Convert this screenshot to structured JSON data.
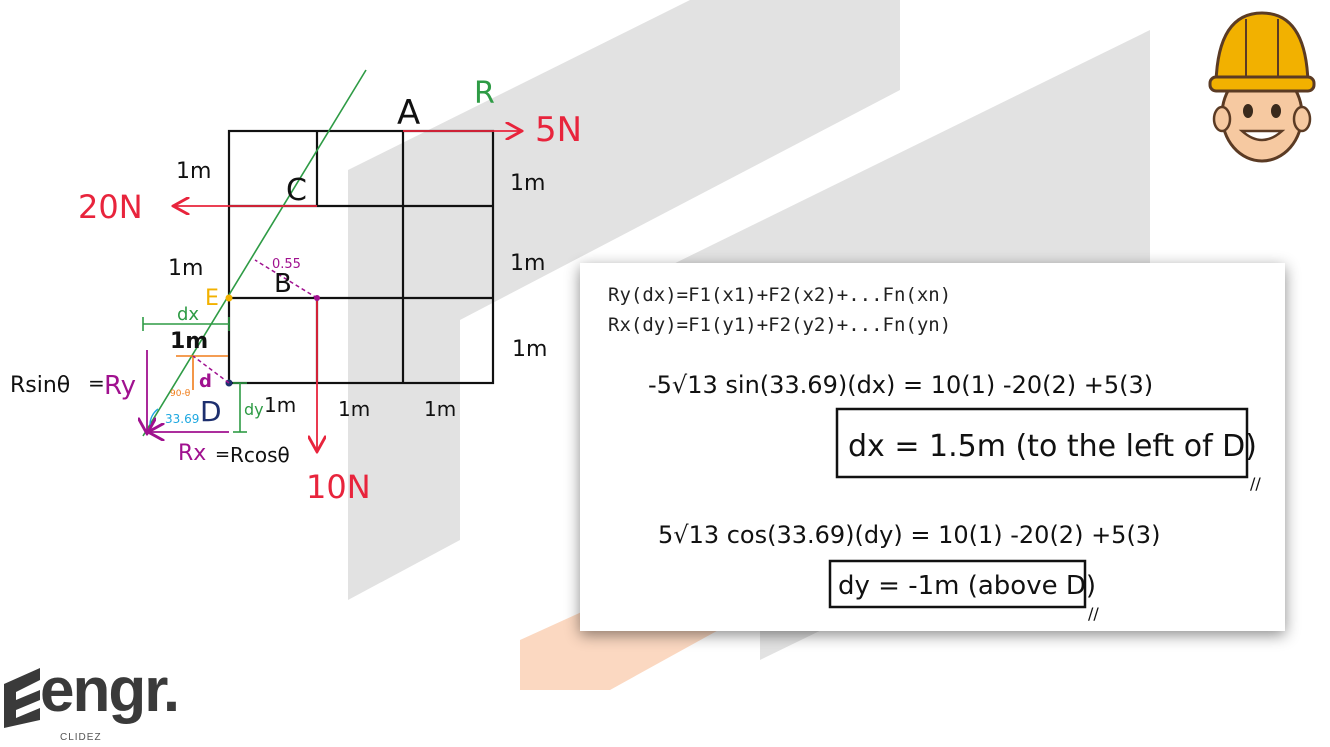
{
  "diagram": {
    "labels": {
      "point_a": "A",
      "point_b": "B",
      "point_c": "C",
      "point_d": "D",
      "point_e": "E",
      "resultant": "R",
      "d": "d",
      "dx": "dx",
      "dy": "dy",
      "angle_b": "0.55",
      "angle_small": "90-θ",
      "angle_d": "33.69"
    },
    "forces": {
      "f_5n": "5N",
      "f_20n": "20N",
      "f_10n": "10N"
    },
    "dimensions": {
      "left_1": "1m",
      "left_2": "1m",
      "left_3": "1m",
      "right_1": "1m",
      "right_2": "1m",
      "right_3": "1m",
      "bottom_1": "1m",
      "bottom_2": "1m",
      "bottom_3": "1m"
    },
    "components": {
      "ry_left": "Rsinθ",
      "ry_eq": "=",
      "ry_right": "Ry",
      "rx_left": "Rx",
      "rx_eq": "=",
      "rx_right": "Rcosθ"
    },
    "colors": {
      "grid": "#111111",
      "force": "#e8243c",
      "resultant": "#2e9b45",
      "magenta": "#a0118f",
      "orange": "#f07d1a",
      "yellow": "#f2b100",
      "navy": "#1d2f6e",
      "cyan": "#1ea8e0"
    }
  },
  "equations": {
    "line1": "Ry(dx)=F1(x1)+F2(x2)+...Fn(xn)",
    "line2": "Rx(dy)=F1(y1)+F2(y2)+...Fn(yn)",
    "eq_dx": "-5√13 sin(33.69)(dx) = 10(1) -20(2) +5(3)",
    "result_dx": "dx = 1.5m (to the left of D)",
    "eq_dy": "5√13 cos(33.69)(dy) = 10(1) -20(2) +5(3)",
    "result_dy": "dy = -1m (above D)",
    "tick": "//"
  },
  "logo": {
    "word": "engr.",
    "sub": "CLIDEZ"
  },
  "icons": {
    "mascot": "engineer-hardhat-icon"
  }
}
